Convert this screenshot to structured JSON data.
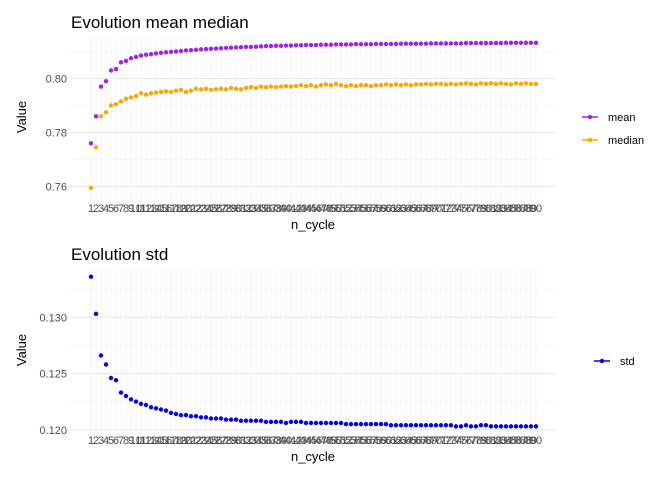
{
  "chart_data": [
    {
      "type": "scatter",
      "title": "Evolution mean median",
      "xlabel": "n_cycle",
      "ylabel": "Value",
      "xlim": [
        1,
        90
      ],
      "ylim": [
        0.755,
        0.815
      ],
      "y_ticks": [
        0.76,
        0.78,
        0.8
      ],
      "y_tick_labels": [
        "0.76",
        "0.78",
        "0.80"
      ],
      "grid": true,
      "legend_position": "right",
      "series": [
        {
          "name": "mean",
          "color": "#a020f0",
          "values": [
            0.776,
            0.786,
            0.797,
            0.799,
            0.803,
            0.8035,
            0.806,
            0.8065,
            0.8075,
            0.808,
            0.8085,
            0.8088,
            0.809,
            0.8093,
            0.8095,
            0.8097,
            0.8099,
            0.81,
            0.8102,
            0.8104,
            0.8105,
            0.8106,
            0.8108,
            0.8109,
            0.811,
            0.8111,
            0.8112,
            0.8113,
            0.8114,
            0.8115,
            0.8116,
            0.8117,
            0.8117,
            0.8118,
            0.8119,
            0.812,
            0.812,
            0.8121,
            0.8121,
            0.8122,
            0.8122,
            0.8123,
            0.8123,
            0.8124,
            0.8124,
            0.8124,
            0.8125,
            0.8125,
            0.8125,
            0.8126,
            0.8126,
            0.8126,
            0.8126,
            0.8127,
            0.8127,
            0.8127,
            0.8127,
            0.8128,
            0.8128,
            0.8128,
            0.8128,
            0.8128,
            0.8129,
            0.8129,
            0.8129,
            0.8129,
            0.8129,
            0.8129,
            0.813,
            0.813,
            0.813,
            0.813,
            0.813,
            0.813,
            0.813,
            0.8131,
            0.8131,
            0.8131,
            0.8131,
            0.8131,
            0.8131,
            0.8131,
            0.8131,
            0.8132,
            0.8132,
            0.8132,
            0.8132,
            0.8132,
            0.8132,
            0.8132
          ]
        },
        {
          "name": "median",
          "color": "#ffa500",
          "values": [
            0.7595,
            0.7745,
            0.786,
            0.7875,
            0.79,
            0.7905,
            0.7915,
            0.7925,
            0.793,
            0.7935,
            0.7945,
            0.794,
            0.7945,
            0.7948,
            0.795,
            0.7952,
            0.795,
            0.7955,
            0.7958,
            0.795,
            0.7955,
            0.7962,
            0.796,
            0.7962,
            0.7958,
            0.796,
            0.7962,
            0.796,
            0.7965,
            0.7962,
            0.796,
            0.7965,
            0.7968,
            0.7965,
            0.797,
            0.7968,
            0.797,
            0.7968,
            0.797,
            0.7972,
            0.797,
            0.7972,
            0.7975,
            0.7972,
            0.7975,
            0.797,
            0.7975,
            0.7978,
            0.7975,
            0.798,
            0.7975,
            0.7972,
            0.7975,
            0.7972,
            0.7975,
            0.7975,
            0.7972,
            0.7975,
            0.7975,
            0.7978,
            0.7975,
            0.7978,
            0.7975,
            0.7978,
            0.7975,
            0.7978,
            0.7978,
            0.798,
            0.7978,
            0.798,
            0.798,
            0.7978,
            0.798,
            0.7978,
            0.798,
            0.7982,
            0.798,
            0.7978,
            0.7982,
            0.798,
            0.7982,
            0.798,
            0.7982,
            0.798,
            0.7978,
            0.7982,
            0.798,
            0.7982,
            0.798,
            0.798
          ]
        }
      ]
    },
    {
      "type": "scatter",
      "title": "Evolution std",
      "xlabel": "n_cycle",
      "ylabel": "Value",
      "xlim": [
        1,
        90
      ],
      "ylim": [
        0.1198,
        0.1342
      ],
      "y_ticks": [
        0.12,
        0.125,
        0.13
      ],
      "y_tick_labels": [
        "0.120",
        "0.125",
        "0.130"
      ],
      "grid": true,
      "legend_position": "right",
      "series": [
        {
          "name": "std",
          "color": "#0000ff",
          "values": [
            0.1336,
            0.1303,
            0.1266,
            0.1258,
            0.1246,
            0.1244,
            0.1233,
            0.123,
            0.1227,
            0.1225,
            0.1223,
            0.1222,
            0.122,
            0.1219,
            0.1218,
            0.1217,
            0.1215,
            0.1214,
            0.1213,
            0.1213,
            0.1212,
            0.1212,
            0.1211,
            0.1211,
            0.121,
            0.121,
            0.121,
            0.1209,
            0.1209,
            0.1209,
            0.1208,
            0.1208,
            0.1208,
            0.1208,
            0.1208,
            0.1207,
            0.1207,
            0.1207,
            0.1207,
            0.1206,
            0.1207,
            0.1207,
            0.1207,
            0.1206,
            0.1206,
            0.1206,
            0.1206,
            0.1206,
            0.1206,
            0.1206,
            0.1206,
            0.1205,
            0.1205,
            0.1205,
            0.1205,
            0.1205,
            0.1205,
            0.1205,
            0.1205,
            0.1205,
            0.1204,
            0.1204,
            0.1204,
            0.1204,
            0.1204,
            0.1204,
            0.1204,
            0.1204,
            0.1204,
            0.1204,
            0.1204,
            0.1204,
            0.1204,
            0.1203,
            0.1203,
            0.1204,
            0.1203,
            0.1203,
            0.1204,
            0.1204,
            0.1203,
            0.1203,
            0.1203,
            0.1203,
            0.1203,
            0.1203,
            0.1203,
            0.1203,
            0.1203,
            0.1203
          ]
        }
      ]
    }
  ]
}
